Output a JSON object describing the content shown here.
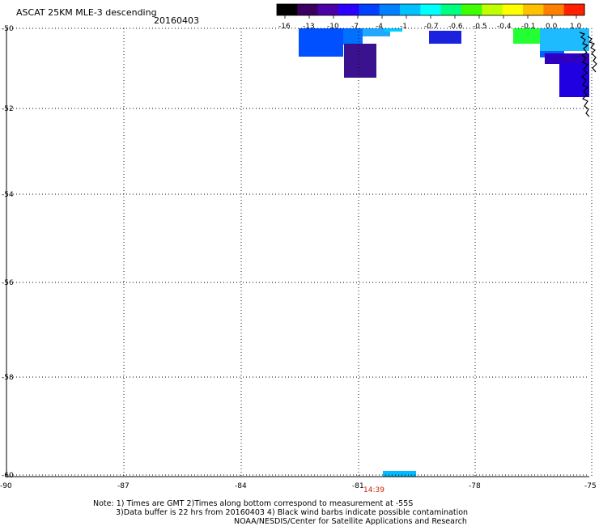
{
  "title": "ASCAT 25KM MLE-3 descending",
  "date": "20160403",
  "colorbar": {
    "tick_labels": [
      "-16",
      "-13",
      "-10",
      "-7",
      "-4",
      "-1",
      "-0.7",
      "-0.6",
      "-0.5",
      "-0.4",
      "-0.1",
      "0.0",
      "1.0"
    ],
    "colors": [
      "#000000",
      "#3a0060",
      "#4b00a8",
      "#2a00ff",
      "#0040ff",
      "#0080ff",
      "#00c0ff",
      "#00ffff",
      "#00ff80",
      "#40ff00",
      "#c0ff00",
      "#ffff00",
      "#ffc000",
      "#ff8000",
      "#ff2000"
    ]
  },
  "map": {
    "lat_labels": [
      "-50",
      "-52",
      "-54",
      "-56",
      "-58",
      "-60"
    ],
    "lon_labels": [
      "-90",
      "-87",
      "-84",
      "-81",
      "-78",
      "-75"
    ],
    "time_label": "14:39",
    "swath_cells": [
      {
        "name": "cell-a",
        "color": "#0050ff"
      },
      {
        "name": "cell-b",
        "color": "#0070ff"
      },
      {
        "name": "cell-c",
        "color": "#3a1290"
      },
      {
        "name": "cell-d",
        "color": "#1ea8ff"
      },
      {
        "name": "cell-e",
        "color": "#00ccff"
      },
      {
        "name": "cell-f",
        "color": "#1a22dd"
      },
      {
        "name": "cell-g",
        "color": "#22ff33"
      },
      {
        "name": "cell-h",
        "color": "#1ebcff"
      },
      {
        "name": "cell-i",
        "color": "#0060ff"
      },
      {
        "name": "cell-j",
        "color": "#3000c0"
      },
      {
        "name": "cell-k",
        "color": "#2000e0"
      },
      {
        "name": "cell-l",
        "color": "#00bbff"
      }
    ]
  },
  "notes": [
    "Note: 1) Times are GMT 2)Times along bottom correspond to measurement at -55S",
    "3)Data buffer is 22 hrs from 20160403 4) Black wind barbs indicate possible contamination",
    "NOAA/NESDIS/Center for Satellite Applications and Research"
  ]
}
